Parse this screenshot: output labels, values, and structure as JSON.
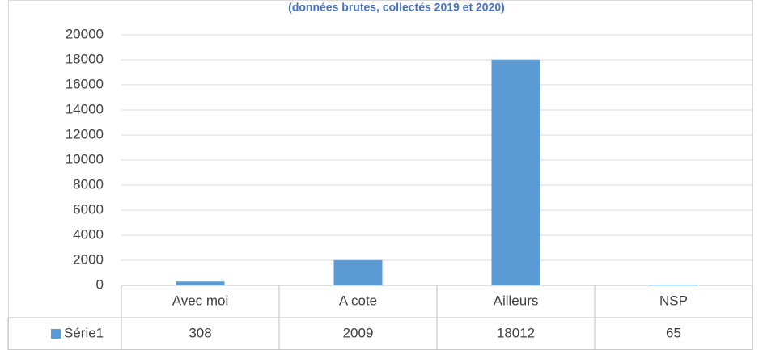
{
  "chart_data": {
    "type": "bar",
    "subtitle": "(données brutes, collectés 2019 et 2020)",
    "categories": [
      "Avec moi",
      "A cote",
      "Ailleurs",
      "NSP"
    ],
    "series": [
      {
        "name": "Série1",
        "color": "#5b9bd5",
        "values": [
          308,
          2009,
          18012,
          65
        ]
      }
    ],
    "ylim": [
      0,
      20000
    ],
    "yticks": [
      0,
      2000,
      4000,
      6000,
      8000,
      10000,
      12000,
      14000,
      16000,
      18000,
      20000
    ],
    "grid": true,
    "data_table": true
  }
}
